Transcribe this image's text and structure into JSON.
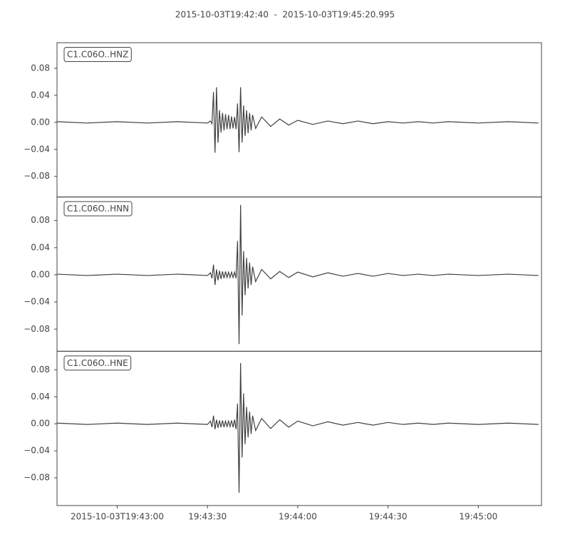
{
  "chart_data": {
    "type": "line",
    "stacked": true,
    "title": "2015-10-03T19:42:40  -  2015-10-03T19:45:20.995",
    "xlim": [
      "2015-10-03T19:42:40",
      "2015-10-03T19:45:20.995"
    ],
    "xticks": [
      {
        "value": "2015-10-03T19:43:00",
        "label": "2015-10-03T19:43:00"
      },
      {
        "value": "2015-10-03T19:43:30",
        "label": "19:43:30"
      },
      {
        "value": "2015-10-03T19:44:00",
        "label": "19:44:00"
      },
      {
        "value": "2015-10-03T19:44:30",
        "label": "19:44:30"
      },
      {
        "value": "2015-10-03T19:45:00",
        "label": "19:45:00"
      }
    ],
    "yticks": [
      0.08,
      0.04,
      {
        "value": 0,
        "label": "0.00"
      },
      {
        "value": -0.04,
        "label": "−0.04"
      },
      {
        "value": -0.08,
        "label": "−0.08"
      }
    ],
    "x": [
      "2015-10-03T19:42:40",
      "2015-10-03T19:42:50",
      "2015-10-03T19:43:00",
      "2015-10-03T19:43:10",
      "2015-10-03T19:43:20",
      "2015-10-03T19:43:30",
      "2015-10-03T19:43:31",
      "2015-10-03T19:43:31.5",
      "2015-10-03T19:43:32",
      "2015-10-03T19:43:32.5",
      "2015-10-03T19:43:33",
      "2015-10-03T19:43:33.5",
      "2015-10-03T19:43:34",
      "2015-10-03T19:43:34.5",
      "2015-10-03T19:43:35",
      "2015-10-03T19:43:35.5",
      "2015-10-03T19:43:36",
      "2015-10-03T19:43:36.5",
      "2015-10-03T19:43:37",
      "2015-10-03T19:43:37.5",
      "2015-10-03T19:43:38",
      "2015-10-03T19:43:38.5",
      "2015-10-03T19:43:39",
      "2015-10-03T19:43:39.5",
      "2015-10-03T19:43:40",
      "2015-10-03T19:43:40.5",
      "2015-10-03T19:43:41",
      "2015-10-03T19:43:41.5",
      "2015-10-03T19:43:42",
      "2015-10-03T19:43:42.5",
      "2015-10-03T19:43:43",
      "2015-10-03T19:43:43.5",
      "2015-10-03T19:43:44",
      "2015-10-03T19:43:44.5",
      "2015-10-03T19:43:45",
      "2015-10-03T19:43:46",
      "2015-10-03T19:43:48",
      "2015-10-03T19:43:51",
      "2015-10-03T19:43:54",
      "2015-10-03T19:43:57",
      "2015-10-03T19:44:00",
      "2015-10-03T19:44:05",
      "2015-10-03T19:44:10",
      "2015-10-03T19:44:15",
      "2015-10-03T19:44:20",
      "2015-10-03T19:44:25",
      "2015-10-03T19:44:30",
      "2015-10-03T19:44:35",
      "2015-10-03T19:44:40",
      "2015-10-03T19:44:45",
      "2015-10-03T19:44:50",
      "2015-10-03T19:45:00",
      "2015-10-03T19:45:10",
      "2015-10-03T19:45:20"
    ],
    "series": [
      {
        "name": "C1.C06O..HNZ",
        "color": "#404040",
        "ylim": [
          -0.1105,
          0.1179
        ],
        "values": [
          0.001,
          -0.001,
          0.001,
          -0.001,
          0.001,
          -0.001,
          0.002,
          -0.002,
          0.045,
          -0.045,
          0.052,
          -0.03,
          0.018,
          -0.015,
          0.014,
          -0.012,
          0.012,
          -0.01,
          0.011,
          -0.01,
          0.009,
          -0.009,
          0.008,
          -0.01,
          0.028,
          -0.044,
          0.052,
          -0.03,
          0.025,
          -0.02,
          0.018,
          -0.016,
          0.014,
          -0.012,
          0.011,
          -0.009,
          0.008,
          -0.006,
          0.005,
          -0.004,
          0.003,
          -0.003,
          0.002,
          -0.002,
          0.002,
          -0.002,
          0.001,
          -0.001,
          0.001,
          -0.001,
          0.001,
          -0.001,
          0.001,
          -0.001
        ]
      },
      {
        "name": "C1.C06O..HNN",
        "color": "#404040",
        "ylim": [
          -0.1126,
          0.1147
        ],
        "values": [
          0.001,
          -0.001,
          0.001,
          -0.001,
          0.001,
          -0.001,
          0.003,
          -0.005,
          0.015,
          -0.015,
          0.008,
          -0.008,
          0.006,
          -0.006,
          0.005,
          -0.005,
          0.005,
          -0.004,
          0.004,
          -0.004,
          0.004,
          -0.004,
          0.004,
          -0.005,
          0.05,
          -0.102,
          0.103,
          -0.06,
          0.035,
          -0.03,
          0.025,
          -0.02,
          0.018,
          -0.015,
          0.012,
          -0.01,
          0.008,
          -0.006,
          0.005,
          -0.004,
          0.004,
          -0.003,
          0.003,
          -0.002,
          0.002,
          -0.002,
          0.002,
          -0.001,
          0.001,
          -0.001,
          0.001,
          -0.001,
          0.001,
          -0.001
        ]
      },
      {
        "name": "C1.C06O..HNE",
        "color": "#404040",
        "ylim": [
          -0.121,
          0.1074
        ],
        "values": [
          0.001,
          -0.001,
          0.001,
          -0.001,
          0.001,
          -0.001,
          0.004,
          -0.005,
          0.012,
          -0.008,
          0.006,
          -0.006,
          0.005,
          -0.005,
          0.005,
          -0.005,
          0.004,
          -0.004,
          0.004,
          -0.004,
          0.005,
          -0.005,
          0.006,
          -0.008,
          0.03,
          -0.102,
          0.09,
          -0.05,
          0.045,
          -0.03,
          0.025,
          -0.02,
          0.018,
          -0.015,
          0.012,
          -0.01,
          0.008,
          -0.007,
          0.006,
          -0.005,
          0.004,
          -0.003,
          0.003,
          -0.002,
          0.002,
          -0.002,
          0.002,
          -0.001,
          0.001,
          -0.001,
          0.001,
          -0.001,
          0.001,
          -0.001
        ]
      }
    ]
  }
}
